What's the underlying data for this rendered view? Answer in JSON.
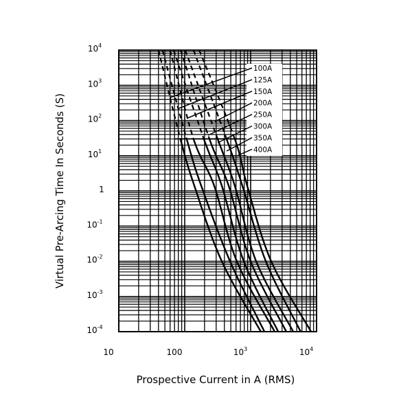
{
  "chart_data": {
    "type": "line",
    "title": "",
    "xlabel": "Prospective Current in A (RMS)",
    "ylabel": "Virtual Pre-Arcing Time In Seconds (S)",
    "x_scale": "log",
    "y_scale": "log",
    "xlim": [
      10,
      10000
    ],
    "ylim": [
      0.0001,
      10000
    ],
    "grid": true,
    "x_ticks": [
      {
        "base": "10",
        "exp": ""
      },
      {
        "base": "100",
        "exp": ""
      },
      {
        "base": "10",
        "exp": "3"
      },
      {
        "base": "10",
        "exp": "4"
      }
    ],
    "y_ticks": [
      {
        "base": "10",
        "exp": "4"
      },
      {
        "base": "10",
        "exp": "3"
      },
      {
        "base": "10",
        "exp": "2"
      },
      {
        "base": "10",
        "exp": "1"
      },
      {
        "base": "1",
        "exp": ""
      },
      {
        "base": "10",
        "exp": "-1"
      },
      {
        "base": "10",
        "exp": "-2"
      },
      {
        "base": "10",
        "exp": "-3"
      },
      {
        "base": "10",
        "exp": "-4"
      }
    ],
    "dashed_above_seconds": 30,
    "series": [
      {
        "name": "100A",
        "points": [
          [
            40,
            10000
          ],
          [
            86,
            30
          ],
          [
            140,
            1.4
          ],
          [
            365,
            0.01
          ],
          [
            1430,
            0.0001
          ]
        ]
      },
      {
        "name": "125A",
        "points": [
          [
            46,
            10000
          ],
          [
            107,
            30
          ],
          [
            178,
            1.4
          ],
          [
            487,
            0.01
          ],
          [
            1620,
            0.0001
          ]
        ]
      },
      {
        "name": "150A",
        "points": [
          [
            60,
            10000
          ],
          [
            136,
            30
          ],
          [
            280,
            1.4
          ],
          [
            617,
            0.01
          ],
          [
            2320,
            0.0001
          ]
        ]
      },
      {
        "name": "200A",
        "points": [
          [
            68,
            10000
          ],
          [
            195,
            30
          ],
          [
            365,
            1.4
          ],
          [
            787,
            0.01
          ],
          [
            2620,
            0.0001
          ]
        ]
      },
      {
        "name": "250A",
        "points": [
          [
            87,
            10000
          ],
          [
            237,
            30
          ],
          [
            464,
            1.4
          ],
          [
            1000,
            0.01
          ],
          [
            3480,
            0.0001
          ]
        ]
      },
      {
        "name": "300A",
        "points": [
          [
            102,
            10000
          ],
          [
            316,
            30
          ],
          [
            575,
            1.4
          ],
          [
            1212,
            0.01
          ],
          [
            4430,
            0.0001
          ]
        ]
      },
      {
        "name": "350A",
        "points": [
          [
            136,
            10000
          ],
          [
            431,
            30
          ],
          [
            750,
            1.4
          ],
          [
            1700,
            0.01
          ],
          [
            5740,
            0.0001
          ]
        ]
      },
      {
        "name": "400A",
        "points": [
          [
            166,
            10000
          ],
          [
            575,
            30
          ],
          [
            887,
            1.4
          ],
          [
            2050,
            0.01
          ],
          [
            8260,
            0.0001
          ]
        ]
      }
    ],
    "colors": {
      "line": "#000000",
      "background": "#ffffff"
    }
  }
}
